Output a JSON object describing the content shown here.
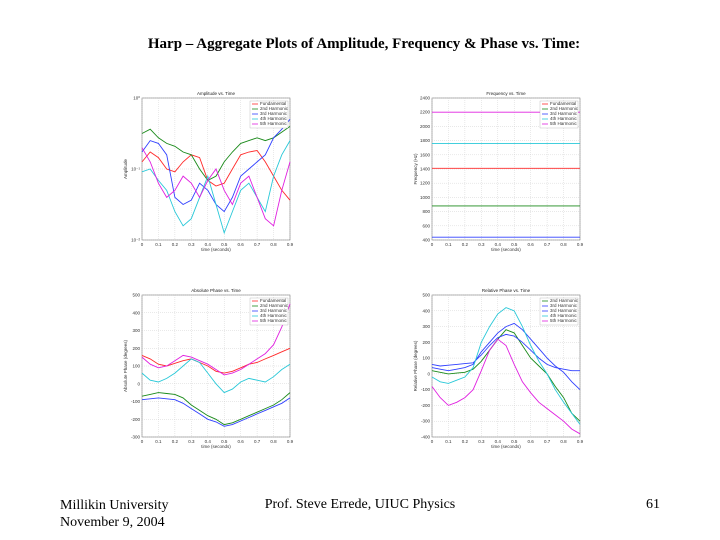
{
  "slide": {
    "title": "Harp – Aggregate Plots of Amplitude, Frequency & Phase vs. Time:",
    "footer_left_1": "Millikin University",
    "footer_left_2": "November 9, 2004",
    "footer_center": "Prof. Steve Errede, UIUC Physics",
    "page_number": "61"
  },
  "colors": {
    "fundamental": "#ff2a2a",
    "h2": "#1a8a1a",
    "h3": "#3040ff",
    "h4": "#28c8d8",
    "h5": "#e020e0",
    "grid": "#c8c8c8"
  },
  "chart_data": [
    {
      "type": "line",
      "title": "Amplitude vs. Time",
      "xlabel": "time (seconds)",
      "ylabel": "Amplitude",
      "xlim": [
        0,
        0.9
      ],
      "x_ticks": [
        "0",
        "0.1",
        "0.2",
        "0.3",
        "0.4",
        "0.5",
        "0.6",
        "0.7",
        "0.8",
        "0.9"
      ],
      "y_ticks": [
        "10⁰",
        "10⁻¹",
        "10⁻²"
      ],
      "ylim": [
        0,
        1
      ],
      "legend": [
        "Fundamental",
        "2nd Harmonic",
        "3rd Harmonic",
        "4th Harmonic",
        "5th Harmonic"
      ],
      "series": [
        {
          "name": "Fundamental",
          "x": [
            0,
            0.05,
            0.1,
            0.15,
            0.2,
            0.25,
            0.3,
            0.35,
            0.4,
            0.45,
            0.5,
            0.55,
            0.6,
            0.65,
            0.7,
            0.75,
            0.8,
            0.85,
            0.9
          ],
          "y": [
            0.55,
            0.62,
            0.58,
            0.5,
            0.48,
            0.55,
            0.6,
            0.58,
            0.42,
            0.38,
            0.4,
            0.5,
            0.6,
            0.62,
            0.63,
            0.55,
            0.45,
            0.35,
            0.28
          ]
        },
        {
          "name": "2nd Harmonic",
          "x": [
            0,
            0.05,
            0.1,
            0.15,
            0.2,
            0.25,
            0.3,
            0.35,
            0.4,
            0.45,
            0.5,
            0.55,
            0.6,
            0.65,
            0.7,
            0.75,
            0.8,
            0.85,
            0.9
          ],
          "y": [
            0.75,
            0.78,
            0.72,
            0.68,
            0.66,
            0.62,
            0.6,
            0.5,
            0.42,
            0.45,
            0.55,
            0.62,
            0.68,
            0.7,
            0.72,
            0.7,
            0.72,
            0.76,
            0.8
          ]
        },
        {
          "name": "3rd Harmonic",
          "x": [
            0,
            0.05,
            0.1,
            0.15,
            0.2,
            0.25,
            0.3,
            0.35,
            0.4,
            0.45,
            0.5,
            0.55,
            0.6,
            0.65,
            0.7,
            0.75,
            0.8,
            0.85,
            0.9
          ],
          "y": [
            0.62,
            0.7,
            0.68,
            0.6,
            0.3,
            0.25,
            0.28,
            0.4,
            0.35,
            0.25,
            0.2,
            0.3,
            0.45,
            0.5,
            0.55,
            0.6,
            0.72,
            0.78,
            0.85
          ]
        },
        {
          "name": "4th Harmonic",
          "x": [
            0,
            0.05,
            0.1,
            0.15,
            0.2,
            0.25,
            0.3,
            0.35,
            0.4,
            0.45,
            0.5,
            0.55,
            0.6,
            0.65,
            0.7,
            0.75,
            0.8,
            0.85,
            0.9
          ],
          "y": [
            0.48,
            0.5,
            0.42,
            0.35,
            0.2,
            0.1,
            0.15,
            0.3,
            0.45,
            0.25,
            0.05,
            0.2,
            0.35,
            0.4,
            0.3,
            0.2,
            0.45,
            0.6,
            0.7
          ]
        },
        {
          "name": "5th Harmonic",
          "x": [
            0,
            0.05,
            0.1,
            0.15,
            0.2,
            0.25,
            0.3,
            0.35,
            0.4,
            0.45,
            0.5,
            0.55,
            0.6,
            0.65,
            0.7,
            0.75,
            0.8,
            0.85,
            0.9
          ],
          "y": [
            0.65,
            0.55,
            0.4,
            0.3,
            0.35,
            0.45,
            0.4,
            0.3,
            0.42,
            0.5,
            0.35,
            0.25,
            0.4,
            0.45,
            0.3,
            0.15,
            0.1,
            0.35,
            0.55
          ]
        }
      ]
    },
    {
      "type": "line",
      "title": "Frequency vs. Time",
      "xlabel": "time (seconds)",
      "ylabel": "Frequency (Hz)",
      "xlim": [
        0,
        0.9
      ],
      "ylim": [
        400,
        2400
      ],
      "x_ticks": [
        "0",
        "0.1",
        "0.2",
        "0.3",
        "0.4",
        "0.5",
        "0.6",
        "0.7",
        "0.8",
        "0.9"
      ],
      "y_ticks": [
        "2400",
        "2200",
        "2000",
        "1800",
        "1600",
        "1400",
        "1200",
        "1000",
        "800",
        "600",
        "400"
      ],
      "legend": [
        "Fundamental",
        "2nd Harmonic",
        "3rd Harmonic",
        "4th Harmonic",
        "5th Harmonic"
      ],
      "series": [
        {
          "name": "Fundamental",
          "x": [
            0,
            0.9
          ],
          "y": [
            1410,
            1410
          ]
        },
        {
          "name": "2nd Harmonic",
          "x": [
            0,
            0.9
          ],
          "y": [
            880,
            880
          ]
        },
        {
          "name": "3rd Harmonic",
          "x": [
            0,
            0.9
          ],
          "y": [
            440,
            440
          ]
        },
        {
          "name": "4th Harmonic",
          "x": [
            0,
            0.9
          ],
          "y": [
            1760,
            1760
          ]
        },
        {
          "name": "5th Harmonic",
          "x": [
            0,
            0.9
          ],
          "y": [
            2200,
            2200
          ]
        }
      ]
    },
    {
      "type": "line",
      "title": "Absolute Phase vs. Time",
      "xlabel": "time (seconds)",
      "ylabel": "Absolute Phase (degrees)",
      "xlim": [
        0,
        0.9
      ],
      "ylim": [
        -300,
        500
      ],
      "x_ticks": [
        "0",
        "0.1",
        "0.2",
        "0.3",
        "0.4",
        "0.5",
        "0.6",
        "0.7",
        "0.8",
        "0.9"
      ],
      "y_ticks": [
        "500",
        "400",
        "300",
        "200",
        "100",
        "0",
        "-100",
        "-200",
        "-300"
      ],
      "legend": [
        "Fundamental",
        "2nd Harmonic",
        "3rd Harmonic",
        "4th Harmonic",
        "5th Harmonic"
      ],
      "series": [
        {
          "name": "Fundamental",
          "x": [
            0,
            0.05,
            0.1,
            0.15,
            0.2,
            0.25,
            0.3,
            0.35,
            0.4,
            0.45,
            0.5,
            0.55,
            0.6,
            0.65,
            0.7,
            0.75,
            0.8,
            0.85,
            0.9
          ],
          "y": [
            160,
            140,
            110,
            100,
            115,
            130,
            140,
            120,
            100,
            70,
            60,
            70,
            90,
            110,
            120,
            140,
            160,
            180,
            200
          ]
        },
        {
          "name": "2nd Harmonic",
          "x": [
            0,
            0.05,
            0.1,
            0.15,
            0.2,
            0.25,
            0.3,
            0.35,
            0.4,
            0.45,
            0.5,
            0.55,
            0.6,
            0.65,
            0.7,
            0.75,
            0.8,
            0.85,
            0.9
          ],
          "y": [
            -70,
            -60,
            -50,
            -55,
            -60,
            -80,
            -120,
            -150,
            -180,
            -200,
            -230,
            -220,
            -200,
            -180,
            -160,
            -140,
            -120,
            -90,
            -50
          ]
        },
        {
          "name": "3rd Harmonic",
          "x": [
            0,
            0.05,
            0.1,
            0.15,
            0.2,
            0.25,
            0.3,
            0.35,
            0.4,
            0.45,
            0.5,
            0.55,
            0.6,
            0.65,
            0.7,
            0.75,
            0.8,
            0.85,
            0.9
          ],
          "y": [
            -90,
            -85,
            -80,
            -85,
            -90,
            -110,
            -140,
            -170,
            -200,
            -215,
            -240,
            -230,
            -210,
            -190,
            -170,
            -150,
            -130,
            -110,
            -80
          ]
        },
        {
          "name": "4th Harmonic",
          "x": [
            0,
            0.05,
            0.1,
            0.15,
            0.2,
            0.25,
            0.3,
            0.35,
            0.4,
            0.45,
            0.5,
            0.55,
            0.6,
            0.65,
            0.7,
            0.75,
            0.8,
            0.85,
            0.9
          ],
          "y": [
            60,
            20,
            10,
            30,
            60,
            100,
            140,
            120,
            60,
            0,
            -50,
            -30,
            10,
            30,
            20,
            10,
            40,
            80,
            110
          ]
        },
        {
          "name": "5th Harmonic",
          "x": [
            0,
            0.05,
            0.1,
            0.15,
            0.2,
            0.25,
            0.3,
            0.35,
            0.4,
            0.45,
            0.5,
            0.55,
            0.6,
            0.65,
            0.7,
            0.75,
            0.8,
            0.85,
            0.9
          ],
          "y": [
            150,
            110,
            90,
            100,
            130,
            160,
            150,
            130,
            110,
            80,
            50,
            60,
            80,
            110,
            140,
            170,
            220,
            320,
            450
          ]
        }
      ]
    },
    {
      "type": "line",
      "title": "Relative Phase vs. Time",
      "xlabel": "time (seconds)",
      "ylabel": "Relative Phase (degrees)",
      "xlim": [
        0,
        0.9
      ],
      "ylim": [
        -400,
        500
      ],
      "x_ticks": [
        "0",
        "0.1",
        "0.2",
        "0.3",
        "0.4",
        "0.5",
        "0.6",
        "0.7",
        "0.8",
        "0.9"
      ],
      "y_ticks": [
        "500",
        "400",
        "300",
        "200",
        "100",
        "0",
        "-100",
        "-200",
        "-300",
        "-400"
      ],
      "legend": [
        "2nd Harmonic",
        "3rd Harmonic",
        "3rd Harmonic",
        "4th Harmonic",
        "5th Harmonic"
      ],
      "series": [
        {
          "name": "2nd Harmonic",
          "x": [
            0,
            0.05,
            0.1,
            0.15,
            0.2,
            0.25,
            0.3,
            0.35,
            0.4,
            0.45,
            0.5,
            0.55,
            0.6,
            0.65,
            0.7,
            0.75,
            0.8,
            0.85,
            0.9
          ],
          "y": [
            20,
            10,
            0,
            5,
            10,
            30,
            80,
            150,
            220,
            280,
            260,
            180,
            100,
            50,
            0,
            -80,
            -150,
            -250,
            -300
          ]
        },
        {
          "name": "3rd Harmonic",
          "x": [
            0,
            0.05,
            0.1,
            0.15,
            0.2,
            0.25,
            0.3,
            0.35,
            0.4,
            0.45,
            0.5,
            0.55,
            0.6,
            0.65,
            0.7,
            0.75,
            0.8,
            0.85,
            0.9
          ],
          "y": [
            60,
            50,
            55,
            60,
            65,
            70,
            120,
            180,
            230,
            250,
            240,
            200,
            150,
            100,
            60,
            40,
            30,
            20,
            20
          ]
        },
        {
          "name": "3rd Harmonic",
          "x": [
            0,
            0.05,
            0.1,
            0.15,
            0.2,
            0.25,
            0.3,
            0.35,
            0.4,
            0.45,
            0.5,
            0.55,
            0.6,
            0.65,
            0.7,
            0.75,
            0.8,
            0.85,
            0.9
          ],
          "y": [
            40,
            30,
            20,
            30,
            40,
            60,
            140,
            200,
            260,
            300,
            320,
            280,
            220,
            160,
            100,
            50,
            10,
            -50,
            -100
          ]
        },
        {
          "name": "4th Harmonic",
          "x": [
            0,
            0.05,
            0.1,
            0.15,
            0.2,
            0.25,
            0.3,
            0.35,
            0.4,
            0.45,
            0.5,
            0.55,
            0.6,
            0.65,
            0.7,
            0.75,
            0.8,
            0.85,
            0.9
          ],
          "y": [
            -20,
            -50,
            -60,
            -40,
            -20,
            40,
            200,
            300,
            380,
            420,
            400,
            300,
            180,
            80,
            0,
            -100,
            -180,
            -250,
            -320
          ]
        },
        {
          "name": "5th Harmonic",
          "x": [
            0,
            0.05,
            0.1,
            0.15,
            0.2,
            0.25,
            0.3,
            0.35,
            0.4,
            0.45,
            0.5,
            0.55,
            0.6,
            0.65,
            0.7,
            0.75,
            0.8,
            0.85,
            0.9
          ],
          "y": [
            -80,
            -150,
            -200,
            -180,
            -150,
            -100,
            20,
            150,
            220,
            180,
            60,
            -50,
            -120,
            -180,
            -220,
            -260,
            -300,
            -350,
            -380
          ]
        }
      ]
    }
  ]
}
